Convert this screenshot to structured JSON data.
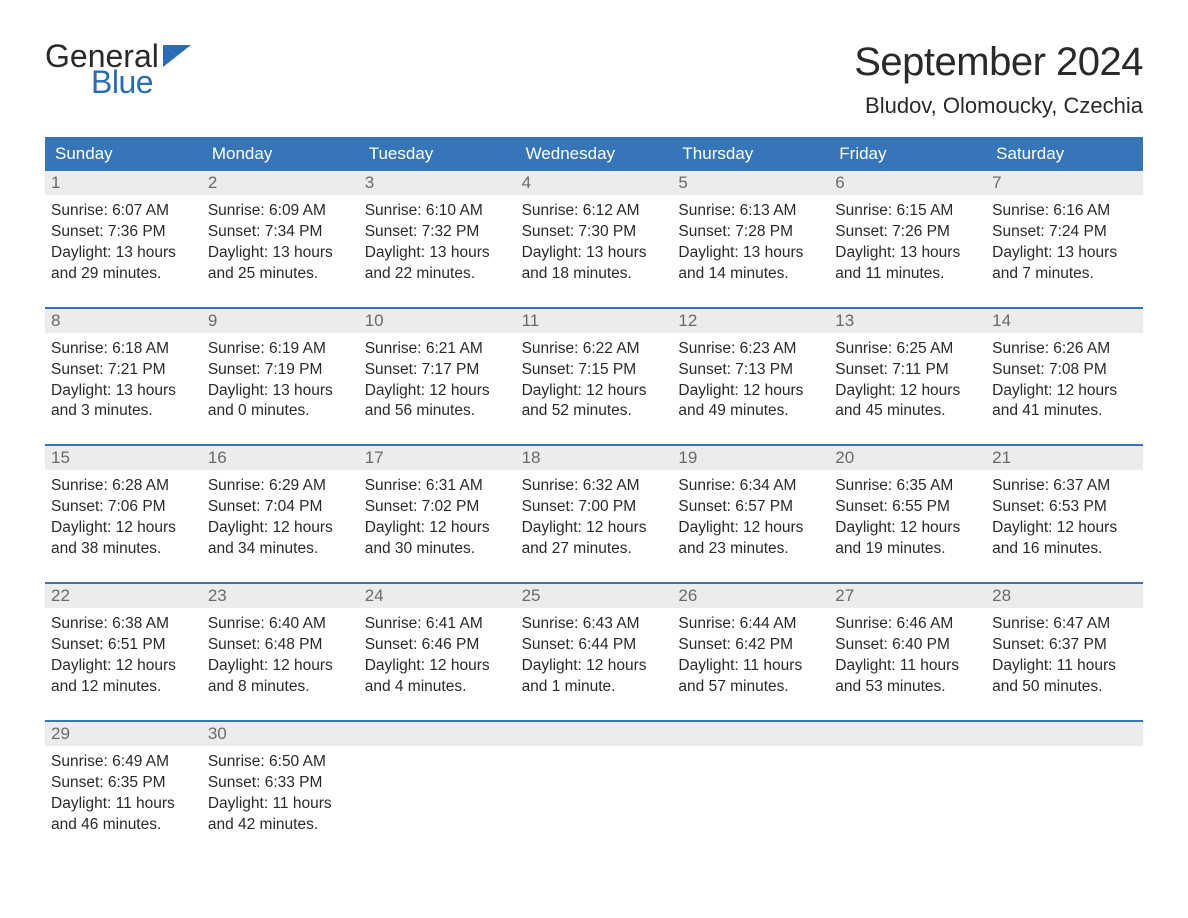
{
  "logo": {
    "general": "General",
    "blue": "Blue"
  },
  "title": "September 2024",
  "location": "Bludov, Olomoucky, Czechia",
  "colors": {
    "header_bg": "#3676b8",
    "header_text": "#ffffff",
    "daynum_bg": "#ececec",
    "daynum_text": "#6a6a6a",
    "body_text": "#2a2a2a",
    "week_border": "#3676b8",
    "page_bg": "#ffffff",
    "logo_blue": "#2a6db5"
  },
  "typography": {
    "title_fontsize": 40,
    "location_fontsize": 22,
    "dayheader_fontsize": 17,
    "daynum_fontsize": 17,
    "body_fontsize": 15.5
  },
  "day_headers": [
    "Sunday",
    "Monday",
    "Tuesday",
    "Wednesday",
    "Thursday",
    "Friday",
    "Saturday"
  ],
  "weeks": [
    [
      {
        "n": "1",
        "sr": "Sunrise: 6:07 AM",
        "ss": "Sunset: 7:36 PM",
        "d1": "Daylight: 13 hours",
        "d2": "and 29 minutes."
      },
      {
        "n": "2",
        "sr": "Sunrise: 6:09 AM",
        "ss": "Sunset: 7:34 PM",
        "d1": "Daylight: 13 hours",
        "d2": "and 25 minutes."
      },
      {
        "n": "3",
        "sr": "Sunrise: 6:10 AM",
        "ss": "Sunset: 7:32 PM",
        "d1": "Daylight: 13 hours",
        "d2": "and 22 minutes."
      },
      {
        "n": "4",
        "sr": "Sunrise: 6:12 AM",
        "ss": "Sunset: 7:30 PM",
        "d1": "Daylight: 13 hours",
        "d2": "and 18 minutes."
      },
      {
        "n": "5",
        "sr": "Sunrise: 6:13 AM",
        "ss": "Sunset: 7:28 PM",
        "d1": "Daylight: 13 hours",
        "d2": "and 14 minutes."
      },
      {
        "n": "6",
        "sr": "Sunrise: 6:15 AM",
        "ss": "Sunset: 7:26 PM",
        "d1": "Daylight: 13 hours",
        "d2": "and 11 minutes."
      },
      {
        "n": "7",
        "sr": "Sunrise: 6:16 AM",
        "ss": "Sunset: 7:24 PM",
        "d1": "Daylight: 13 hours",
        "d2": "and 7 minutes."
      }
    ],
    [
      {
        "n": "8",
        "sr": "Sunrise: 6:18 AM",
        "ss": "Sunset: 7:21 PM",
        "d1": "Daylight: 13 hours",
        "d2": "and 3 minutes."
      },
      {
        "n": "9",
        "sr": "Sunrise: 6:19 AM",
        "ss": "Sunset: 7:19 PM",
        "d1": "Daylight: 13 hours",
        "d2": "and 0 minutes."
      },
      {
        "n": "10",
        "sr": "Sunrise: 6:21 AM",
        "ss": "Sunset: 7:17 PM",
        "d1": "Daylight: 12 hours",
        "d2": "and 56 minutes."
      },
      {
        "n": "11",
        "sr": "Sunrise: 6:22 AM",
        "ss": "Sunset: 7:15 PM",
        "d1": "Daylight: 12 hours",
        "d2": "and 52 minutes."
      },
      {
        "n": "12",
        "sr": "Sunrise: 6:23 AM",
        "ss": "Sunset: 7:13 PM",
        "d1": "Daylight: 12 hours",
        "d2": "and 49 minutes."
      },
      {
        "n": "13",
        "sr": "Sunrise: 6:25 AM",
        "ss": "Sunset: 7:11 PM",
        "d1": "Daylight: 12 hours",
        "d2": "and 45 minutes."
      },
      {
        "n": "14",
        "sr": "Sunrise: 6:26 AM",
        "ss": "Sunset: 7:08 PM",
        "d1": "Daylight: 12 hours",
        "d2": "and 41 minutes."
      }
    ],
    [
      {
        "n": "15",
        "sr": "Sunrise: 6:28 AM",
        "ss": "Sunset: 7:06 PM",
        "d1": "Daylight: 12 hours",
        "d2": "and 38 minutes."
      },
      {
        "n": "16",
        "sr": "Sunrise: 6:29 AM",
        "ss": "Sunset: 7:04 PM",
        "d1": "Daylight: 12 hours",
        "d2": "and 34 minutes."
      },
      {
        "n": "17",
        "sr": "Sunrise: 6:31 AM",
        "ss": "Sunset: 7:02 PM",
        "d1": "Daylight: 12 hours",
        "d2": "and 30 minutes."
      },
      {
        "n": "18",
        "sr": "Sunrise: 6:32 AM",
        "ss": "Sunset: 7:00 PM",
        "d1": "Daylight: 12 hours",
        "d2": "and 27 minutes."
      },
      {
        "n": "19",
        "sr": "Sunrise: 6:34 AM",
        "ss": "Sunset: 6:57 PM",
        "d1": "Daylight: 12 hours",
        "d2": "and 23 minutes."
      },
      {
        "n": "20",
        "sr": "Sunrise: 6:35 AM",
        "ss": "Sunset: 6:55 PM",
        "d1": "Daylight: 12 hours",
        "d2": "and 19 minutes."
      },
      {
        "n": "21",
        "sr": "Sunrise: 6:37 AM",
        "ss": "Sunset: 6:53 PM",
        "d1": "Daylight: 12 hours",
        "d2": "and 16 minutes."
      }
    ],
    [
      {
        "n": "22",
        "sr": "Sunrise: 6:38 AM",
        "ss": "Sunset: 6:51 PM",
        "d1": "Daylight: 12 hours",
        "d2": "and 12 minutes."
      },
      {
        "n": "23",
        "sr": "Sunrise: 6:40 AM",
        "ss": "Sunset: 6:48 PM",
        "d1": "Daylight: 12 hours",
        "d2": "and 8 minutes."
      },
      {
        "n": "24",
        "sr": "Sunrise: 6:41 AM",
        "ss": "Sunset: 6:46 PM",
        "d1": "Daylight: 12 hours",
        "d2": "and 4 minutes."
      },
      {
        "n": "25",
        "sr": "Sunrise: 6:43 AM",
        "ss": "Sunset: 6:44 PM",
        "d1": "Daylight: 12 hours",
        "d2": "and 1 minute."
      },
      {
        "n": "26",
        "sr": "Sunrise: 6:44 AM",
        "ss": "Sunset: 6:42 PM",
        "d1": "Daylight: 11 hours",
        "d2": "and 57 minutes."
      },
      {
        "n": "27",
        "sr": "Sunrise: 6:46 AM",
        "ss": "Sunset: 6:40 PM",
        "d1": "Daylight: 11 hours",
        "d2": "and 53 minutes."
      },
      {
        "n": "28",
        "sr": "Sunrise: 6:47 AM",
        "ss": "Sunset: 6:37 PM",
        "d1": "Daylight: 11 hours",
        "d2": "and 50 minutes."
      }
    ],
    [
      {
        "n": "29",
        "sr": "Sunrise: 6:49 AM",
        "ss": "Sunset: 6:35 PM",
        "d1": "Daylight: 11 hours",
        "d2": "and 46 minutes."
      },
      {
        "n": "30",
        "sr": "Sunrise: 6:50 AM",
        "ss": "Sunset: 6:33 PM",
        "d1": "Daylight: 11 hours",
        "d2": "and 42 minutes."
      },
      {
        "n": "",
        "sr": "",
        "ss": "",
        "d1": "",
        "d2": ""
      },
      {
        "n": "",
        "sr": "",
        "ss": "",
        "d1": "",
        "d2": ""
      },
      {
        "n": "",
        "sr": "",
        "ss": "",
        "d1": "",
        "d2": ""
      },
      {
        "n": "",
        "sr": "",
        "ss": "",
        "d1": "",
        "d2": ""
      },
      {
        "n": "",
        "sr": "",
        "ss": "",
        "d1": "",
        "d2": ""
      }
    ]
  ]
}
